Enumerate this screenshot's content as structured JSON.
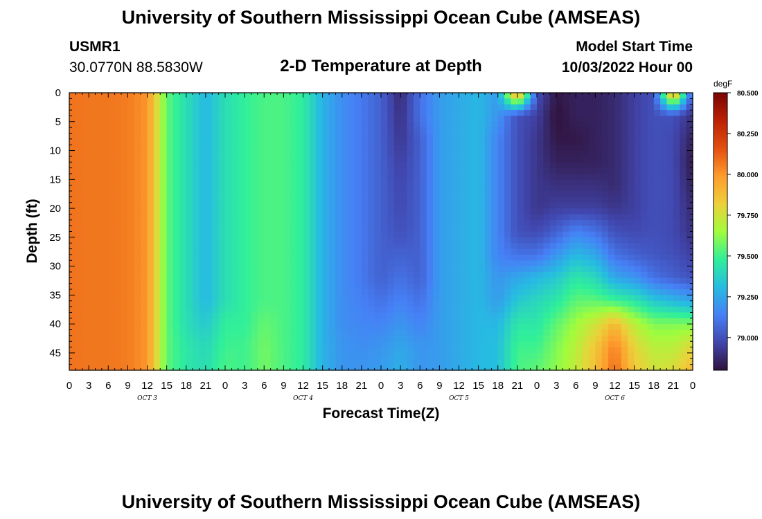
{
  "page": {
    "title_top": "University of Southern Mississippi Ocean Cube (AMSEAS)",
    "title_bottom": "University of Southern Mississippi Ocean Cube (AMSEAS)",
    "station_id": "USMR1",
    "station_coords": "30.0770N  88.5830W",
    "model_start_label": "Model Start Time",
    "model_start_value": "10/03/2022 Hour 00"
  },
  "chart_data": {
    "type": "heatmap",
    "title": "2-D Temperature at Depth",
    "xlabel": "Forecast Time(Z)",
    "ylabel": "Depth (ft)",
    "x_range_hours": [
      0,
      96
    ],
    "ylim": [
      0,
      48
    ],
    "y_inverted": true,
    "x_ticks": [
      "0",
      "3",
      "6",
      "9",
      "12",
      "15",
      "18",
      "21",
      "0",
      "3",
      "6",
      "9",
      "12",
      "15",
      "18",
      "21",
      "0",
      "3",
      "6",
      "9",
      "12",
      "15",
      "18",
      "21",
      "0",
      "3",
      "6",
      "9",
      "12",
      "15",
      "18",
      "21",
      "0"
    ],
    "y_ticks": [
      "0",
      "5",
      "10",
      "15",
      "20",
      "25",
      "30",
      "35",
      "40",
      "45"
    ],
    "day_labels": [
      "OCT 3",
      "OCT 4",
      "OCT 5",
      "OCT 6"
    ],
    "colorbar": {
      "unit": "degF",
      "min": 78.8,
      "max": 80.5,
      "tick_labels": [
        "80.500",
        "80.250",
        "80.000",
        "79.750",
        "79.500",
        "79.250",
        "79.000"
      ],
      "colors": [
        "#30123b",
        "#4146ad",
        "#4680f6",
        "#26bce1",
        "#30ef9a",
        "#a2fc3c",
        "#edd03a",
        "#fe9b2d",
        "#e34f0f",
        "#bb2104",
        "#7a0403"
      ]
    },
    "z_grid": {
      "hours": [
        0,
        3,
        6,
        9,
        12,
        15,
        18,
        21,
        24,
        27,
        30,
        33,
        36,
        39,
        42,
        45,
        48,
        51,
        54,
        57,
        60,
        63,
        66,
        69,
        72,
        75,
        78,
        81,
        84,
        87,
        90,
        93,
        96
      ],
      "depths": [
        0,
        4,
        8,
        12,
        16,
        20,
        24,
        28,
        32,
        36,
        40,
        44,
        48
      ],
      "values": [
        [
          80.08,
          80.08,
          80.08,
          80.08,
          80.08,
          80.08,
          80.08,
          80.08,
          80.08,
          80.08,
          80.08,
          80.08,
          80.08
        ],
        [
          80.07,
          80.07,
          80.07,
          80.07,
          80.07,
          80.07,
          80.07,
          80.07,
          80.07,
          80.07,
          80.07,
          80.07,
          80.07
        ],
        [
          80.07,
          80.07,
          80.07,
          80.07,
          80.07,
          80.07,
          80.07,
          80.07,
          80.07,
          80.07,
          80.07,
          80.07,
          80.07
        ],
        [
          80.06,
          80.06,
          80.06,
          80.06,
          80.06,
          80.06,
          80.06,
          80.06,
          80.06,
          80.06,
          80.06,
          80.06,
          80.06
        ],
        [
          80.0,
          80.0,
          80.0,
          80.0,
          80.0,
          80.0,
          80.0,
          80.0,
          80.0,
          80.0,
          80.0,
          80.0,
          80.0
        ],
        [
          79.55,
          79.55,
          79.55,
          79.55,
          79.55,
          79.55,
          79.55,
          79.55,
          79.55,
          79.55,
          79.55,
          79.55,
          79.55
        ],
        [
          79.42,
          79.42,
          79.42,
          79.42,
          79.42,
          79.42,
          79.42,
          79.42,
          79.42,
          79.42,
          79.42,
          79.45,
          79.45
        ],
        [
          79.3,
          79.3,
          79.3,
          79.3,
          79.3,
          79.3,
          79.3,
          79.3,
          79.3,
          79.3,
          79.35,
          79.4,
          79.42
        ],
        [
          79.42,
          79.42,
          79.42,
          79.42,
          79.42,
          79.42,
          79.42,
          79.42,
          79.42,
          79.42,
          79.48,
          79.5,
          79.52
        ],
        [
          79.48,
          79.48,
          79.48,
          79.48,
          79.48,
          79.48,
          79.48,
          79.48,
          79.48,
          79.48,
          79.48,
          79.5,
          79.5
        ],
        [
          79.52,
          79.52,
          79.52,
          79.52,
          79.52,
          79.52,
          79.52,
          79.52,
          79.52,
          79.52,
          79.56,
          79.58,
          79.58
        ],
        [
          79.52,
          79.52,
          79.52,
          79.52,
          79.52,
          79.52,
          79.52,
          79.52,
          79.52,
          79.52,
          79.52,
          79.52,
          79.52
        ],
        [
          79.47,
          79.47,
          79.47,
          79.47,
          79.47,
          79.47,
          79.47,
          79.47,
          79.47,
          79.47,
          79.47,
          79.47,
          79.47
        ],
        [
          79.28,
          79.28,
          79.28,
          79.28,
          79.28,
          79.28,
          79.28,
          79.28,
          79.28,
          79.28,
          79.28,
          79.28,
          79.28
        ],
        [
          79.18,
          79.18,
          79.18,
          79.18,
          79.18,
          79.18,
          79.18,
          79.18,
          79.18,
          79.18,
          79.18,
          79.2,
          79.2
        ],
        [
          79.12,
          79.12,
          79.12,
          79.12,
          79.12,
          79.12,
          79.12,
          79.12,
          79.12,
          79.14,
          79.16,
          79.18,
          79.2
        ],
        [
          79.05,
          79.05,
          79.05,
          79.05,
          79.05,
          79.05,
          79.05,
          79.05,
          79.05,
          79.1,
          79.15,
          79.2,
          79.22
        ],
        [
          78.88,
          78.9,
          78.92,
          78.95,
          78.97,
          78.98,
          79.0,
          79.05,
          79.1,
          79.15,
          79.2,
          79.25,
          79.28
        ],
        [
          79.1,
          79.1,
          79.05,
          79.05,
          79.05,
          79.05,
          79.05,
          79.05,
          79.05,
          79.1,
          79.15,
          79.2,
          79.2
        ],
        [
          79.22,
          79.22,
          79.22,
          79.22,
          79.22,
          79.22,
          79.22,
          79.22,
          79.22,
          79.22,
          79.22,
          79.22,
          79.22
        ],
        [
          79.26,
          79.26,
          79.26,
          79.26,
          79.26,
          79.26,
          79.26,
          79.26,
          79.26,
          79.26,
          79.26,
          79.26,
          79.26
        ],
        [
          79.3,
          79.3,
          79.3,
          79.3,
          79.3,
          79.3,
          79.3,
          79.3,
          79.3,
          79.3,
          79.3,
          79.3,
          79.3
        ],
        [
          79.22,
          79.2,
          79.15,
          79.15,
          79.15,
          79.15,
          79.15,
          79.15,
          79.2,
          79.22,
          79.3,
          79.32,
          79.32
        ],
        [
          80.05,
          79.0,
          79.0,
          79.0,
          79.0,
          79.0,
          79.0,
          79.1,
          79.25,
          79.35,
          79.45,
          79.5,
          79.52
        ],
        [
          79.0,
          78.95,
          78.92,
          78.92,
          78.92,
          78.92,
          78.98,
          79.1,
          79.3,
          79.4,
          79.45,
          79.5,
          79.55
        ],
        [
          78.82,
          78.8,
          78.82,
          78.85,
          78.9,
          78.95,
          79.05,
          79.2,
          79.35,
          79.45,
          79.55,
          79.6,
          79.62
        ],
        [
          78.85,
          78.85,
          78.82,
          78.85,
          78.9,
          78.95,
          79.15,
          79.3,
          79.45,
          79.55,
          79.65,
          79.7,
          79.72
        ],
        [
          78.85,
          78.85,
          78.85,
          78.85,
          78.9,
          78.95,
          79.1,
          79.25,
          79.4,
          79.55,
          79.75,
          79.85,
          79.88
        ],
        [
          78.88,
          78.88,
          78.88,
          78.88,
          78.88,
          78.92,
          79.0,
          79.1,
          79.25,
          79.5,
          79.9,
          80.05,
          80.1
        ],
        [
          78.95,
          78.95,
          78.95,
          78.95,
          78.95,
          78.95,
          78.98,
          79.05,
          79.2,
          79.45,
          79.7,
          79.8,
          79.85
        ],
        [
          79.0,
          79.0,
          79.0,
          79.0,
          79.0,
          79.0,
          79.0,
          79.02,
          79.1,
          79.35,
          79.6,
          79.7,
          79.75
        ],
        [
          80.05,
          79.0,
          78.98,
          78.98,
          78.98,
          78.98,
          78.98,
          79.0,
          79.05,
          79.3,
          79.6,
          79.7,
          79.78
        ],
        [
          79.0,
          78.9,
          78.85,
          78.82,
          78.85,
          78.88,
          78.9,
          78.95,
          79.0,
          79.25,
          79.6,
          79.8,
          79.9
        ]
      ]
    }
  }
}
